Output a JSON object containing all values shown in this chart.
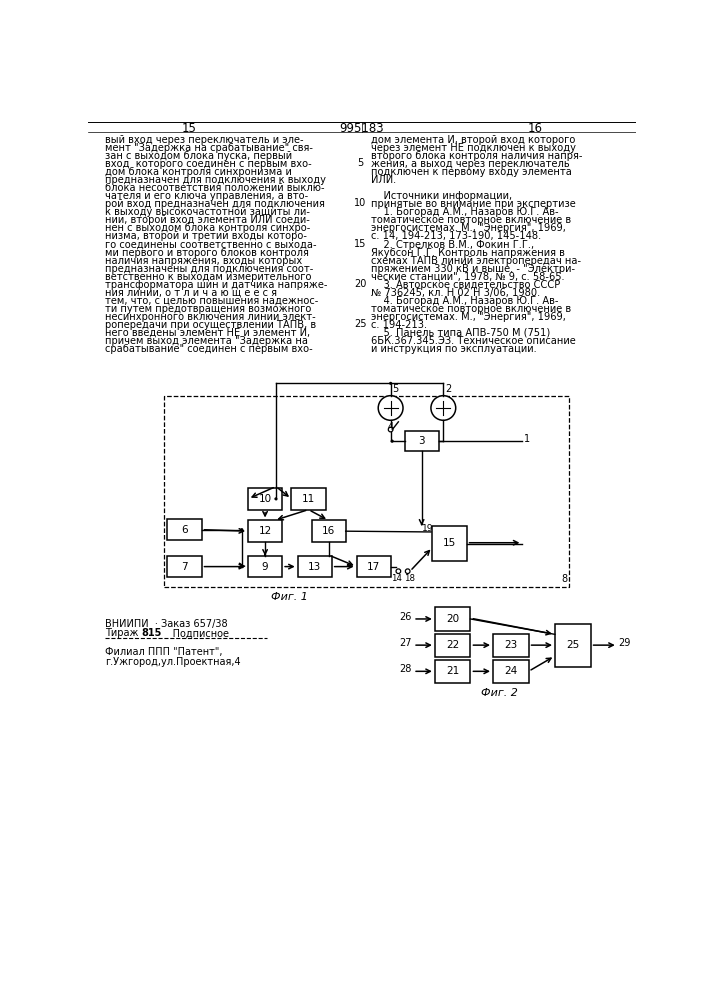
{
  "page_numbers": [
    "15",
    "995183",
    "16"
  ],
  "left_text": [
    "вый вход через переключатель и эле-",
    "мент \"Задержка на срабатывание\" свя-",
    "зан с выходом блока пуска, первый",
    "вход  которого соединен с первым вхо-",
    "дом блока контроля синхронизма и",
    "предназначен для подключения к выходу",
    "блока несоответствия положений выклю-",
    "чателя и его ключа управления, а вто-",
    "рой вход предназначен для подключения",
    "к выходу высокочастотной защиты ли-",
    "нии, второй вход элемента ИЛИ соеди-",
    "нен с выходом блока контроля синхро-",
    "низма, второй и третий входы которо-",
    "го соединены соответственно с выхода-",
    "ми первого и второго блоков контроля",
    "наличия напряжения, входы которых",
    "предназначены для подключения соот-",
    "ветственно к выходам измерительного",
    "трансформатора шин и датчика напряже-",
    "ния линии, о т л и ч а ю щ е е с я",
    "тем, что, с целью повышения надежнос-",
    "ти путем предотвращения возможного",
    "несинхронного включения линии элект-",
    "ропередачи при осуществлении ТАПВ, в",
    "него введены элемент НЕ и элемент И,",
    "причем выход элемента \"Задержка на",
    "срабатывание\" соединен с первым вхо-"
  ],
  "right_text": [
    "дом элемента И, второй вход которого",
    "через элемент НЕ подключен к выходу",
    "второго блока контроля наличия напря-",
    "жения, а выход через переключатель",
    "подключен к первому входу элемента",
    "ИЛИ.",
    "",
    "    Источники информации,",
    "принятые во внимание при экспертизе",
    "    1. Богорад А.М., Назаров Ю.Г. Ав-",
    "томатическое повторное включение в",
    "энергосистемах. М., \"Энергия\", 1969,",
    "с. 14, 194-213, 173-190, 145-148.",
    "    2. Стрелков В.М., Фокин Г.Г.,",
    "Якубсон Г.Г. Контроль напряжения в",
    "схемах ТАПВ линий электропередач на-",
    "пряжением 330 кВ и выше. - \"Электри-",
    "ческие станции\", 1978, № 9, с. 58-65.",
    "    3. Авторское свидетельство СССР",
    "№ 736245, кл. Н 02 Н 3/06, 1980.",
    "    4. Богорад А.М., Назаров Ю.Г. Ав-",
    "томатическое повторное включение в",
    "энергосистемах. М., \"Энергия\", 1969,",
    "с. 194-213.",
    "    5. Панель типа АПВ-750 М (751)",
    "6БК.367.345.ЭЗ. Техническое описание",
    "и инструкция по эксплуатации."
  ],
  "line_numbers": [
    "5",
    "10",
    "15",
    "20",
    "25"
  ],
  "line_num_rows": [
    4,
    9,
    14,
    19,
    24
  ],
  "fig1_label": "Фиг. 1",
  "fig2_label": "Фиг. 2",
  "bottom_left_line1": "ВНИИПИ  · Заказ 657/38",
  "bottom_left_line2a": "Тираж ",
  "bottom_left_line2b": "815",
  "bottom_left_line2c": "     Подписное",
  "bottom_left_line3": "Филиал ППП \"Патент\",",
  "bottom_left_line4": "г.Ужгород,ул.Проектная,4"
}
